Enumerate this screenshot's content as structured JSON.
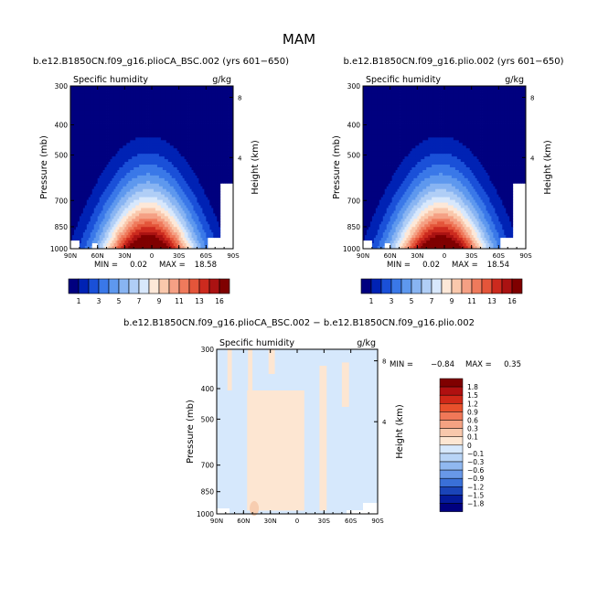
{
  "page_title": "MAM",
  "colors": {
    "cool": [
      "#00007f",
      "#0022b4",
      "#1a50d8",
      "#3a78e8",
      "#5e98ee",
      "#88b4f2",
      "#b0cef6",
      "#d8e8fc"
    ],
    "warm": [
      "#fde8d8",
      "#fac8ac",
      "#f5a084",
      "#ef7a5c",
      "#e4553a",
      "#cc2a1e",
      "#aa1212",
      "#7f0000"
    ],
    "diff_cool": "#d6e8fc",
    "diff_warm": "#fde6d2",
    "missing": "#ffffff"
  },
  "chart_data": [
    {
      "id": "panel1",
      "type": "contour",
      "title": "b.e12.B1850CN.f09_g16.plioCA_BSC.002 (yrs 601−650)",
      "left_label": "Specific humidity",
      "right_label": "g/kg",
      "ylabel": "Pressure (mb)",
      "y2label": "Height (km)",
      "x_ticks": [
        "90N",
        "60N",
        "30N",
        "0",
        "30S",
        "60S",
        "90S"
      ],
      "y_ticks": [
        "300",
        "400",
        "500",
        "700",
        "850",
        "1000"
      ],
      "y2_ticks": [
        "8",
        "4"
      ],
      "min_label": "MIN =",
      "min_value": "0.02",
      "max_label": "MAX =",
      "max_value": "18.58",
      "levels": [
        "1",
        "3",
        "5",
        "7",
        "9",
        "11",
        "13",
        "16"
      ],
      "max": 18.58
    },
    {
      "id": "panel2",
      "type": "contour",
      "title": "b.e12.B1850CN.f09_g16.plio.002 (yrs 601−650)",
      "left_label": "Specific humidity",
      "right_label": "g/kg",
      "ylabel": "Pressure (mb)",
      "y2label": "Height (km)",
      "x_ticks": [
        "90N",
        "60N",
        "30N",
        "0",
        "30S",
        "60S",
        "90S"
      ],
      "y_ticks": [
        "300",
        "400",
        "500",
        "700",
        "850",
        "1000"
      ],
      "y2_ticks": [
        "8",
        "4"
      ],
      "min_label": "MIN =",
      "min_value": "0.02",
      "max_label": "MAX =",
      "max_value": "18.54",
      "levels": [
        "1",
        "3",
        "5",
        "7",
        "9",
        "11",
        "13",
        "16"
      ],
      "max": 18.54
    },
    {
      "id": "panel3",
      "type": "contour",
      "title": "b.e12.B1850CN.f09_g16.plioCA_BSC.002 − b.e12.B1850CN.f09_g16.plio.002",
      "left_label": "Specific humidity",
      "right_label": "g/kg",
      "ylabel": "Pressure (mb)",
      "y2label": "Height (km)",
      "x_ticks": [
        "90N",
        "60N",
        "30N",
        "0",
        "30S",
        "60S",
        "90S"
      ],
      "y_ticks": [
        "300",
        "400",
        "500",
        "700",
        "850",
        "1000"
      ],
      "y2_ticks": [
        "8",
        "4"
      ],
      "min_label": "MIN =",
      "min_value": "−0.84",
      "max_label": "MAX =",
      "max_value": "0.35",
      "levels": [
        "1.8",
        "1.5",
        "1.2",
        "0.9",
        "0.6",
        "0.3",
        "0.1",
        "0",
        "−0.1",
        "−0.3",
        "−0.6",
        "−0.9",
        "−1.2",
        "−1.5",
        "−1.8"
      ]
    }
  ]
}
